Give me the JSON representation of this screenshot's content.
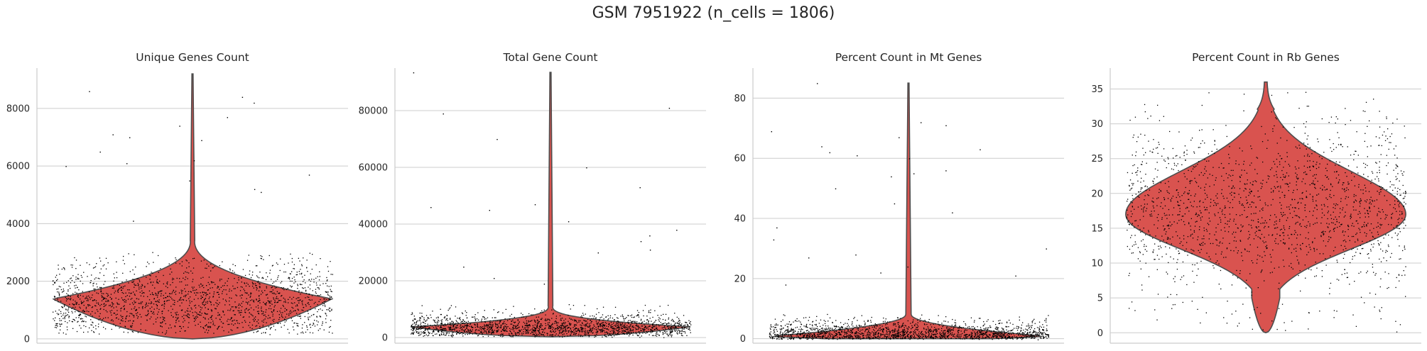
{
  "figure": {
    "title": "GSM 7951922 (n_cells = 1806)"
  },
  "chart_data": [
    {
      "type": "violin",
      "title": "Unique Genes Count",
      "xlabel": "",
      "ylabel": "",
      "ylim": [
        -150,
        9400
      ],
      "yticks": [
        0,
        2000,
        4000,
        6000,
        8000
      ],
      "grid": true,
      "violin_color": "#d9534f",
      "distribution": {
        "min": 0,
        "max": 9200,
        "mode": 1400,
        "median": 1350
      },
      "points": {
        "n": 1806,
        "bulk_low": 200,
        "bulk_high": 3000,
        "outliers": [
          8400,
          8600,
          8200,
          7700,
          7400,
          7100,
          7000,
          6900,
          6500,
          6200,
          6100,
          6000,
          5700,
          5500,
          5200,
          5100,
          4100
        ]
      }
    },
    {
      "type": "violin",
      "title": "Total Gene Count",
      "xlabel": "",
      "ylabel": "",
      "ylim": [
        -2000,
        95000
      ],
      "yticks": [
        0,
        20000,
        40000,
        60000,
        80000
      ],
      "grid": true,
      "violin_color": "#d9534f",
      "distribution": {
        "min": 300,
        "max": 93500,
        "mode": 3800,
        "median": 4000
      },
      "points": {
        "n": 1806,
        "bulk_low": 300,
        "bulk_high": 12000,
        "outliers": [
          93500,
          81000,
          79000,
          70000,
          60000,
          53000,
          47000,
          46000,
          45000,
          41000,
          38000,
          36000,
          34000,
          31000,
          30000,
          25000,
          21000,
          19000
        ]
      }
    },
    {
      "type": "violin",
      "title": "Percent Count in Mt Genes",
      "xlabel": "",
      "ylabel": "",
      "ylim": [
        -1.5,
        90
      ],
      "yticks": [
        0,
        20,
        40,
        60,
        80
      ],
      "grid": true,
      "violin_color": "#d9534f",
      "distribution": {
        "min": 0,
        "max": 85,
        "mode": 0.8,
        "median": 1.2
      },
      "points": {
        "n": 1806,
        "bulk_low": 0,
        "bulk_high": 8,
        "outliers": [
          85,
          72,
          71,
          69,
          67,
          64,
          63,
          62,
          61,
          60,
          56,
          55,
          54,
          50,
          45,
          42,
          37,
          33,
          30,
          28,
          27,
          24,
          22,
          21,
          18
        ]
      }
    },
    {
      "type": "violin",
      "title": "Percent Count in Rb Genes",
      "xlabel": "",
      "ylabel": "",
      "ylim": [
        -1.5,
        38
      ],
      "yticks": [
        0,
        5,
        10,
        15,
        20,
        25,
        30,
        35
      ],
      "grid": true,
      "violin_color": "#d9534f",
      "distribution": {
        "min": 0,
        "max": 36,
        "mode": 17,
        "median": 17.5
      },
      "points": {
        "n": 1806,
        "bulk_low": 0,
        "bulk_high": 35,
        "outliers": []
      }
    }
  ]
}
